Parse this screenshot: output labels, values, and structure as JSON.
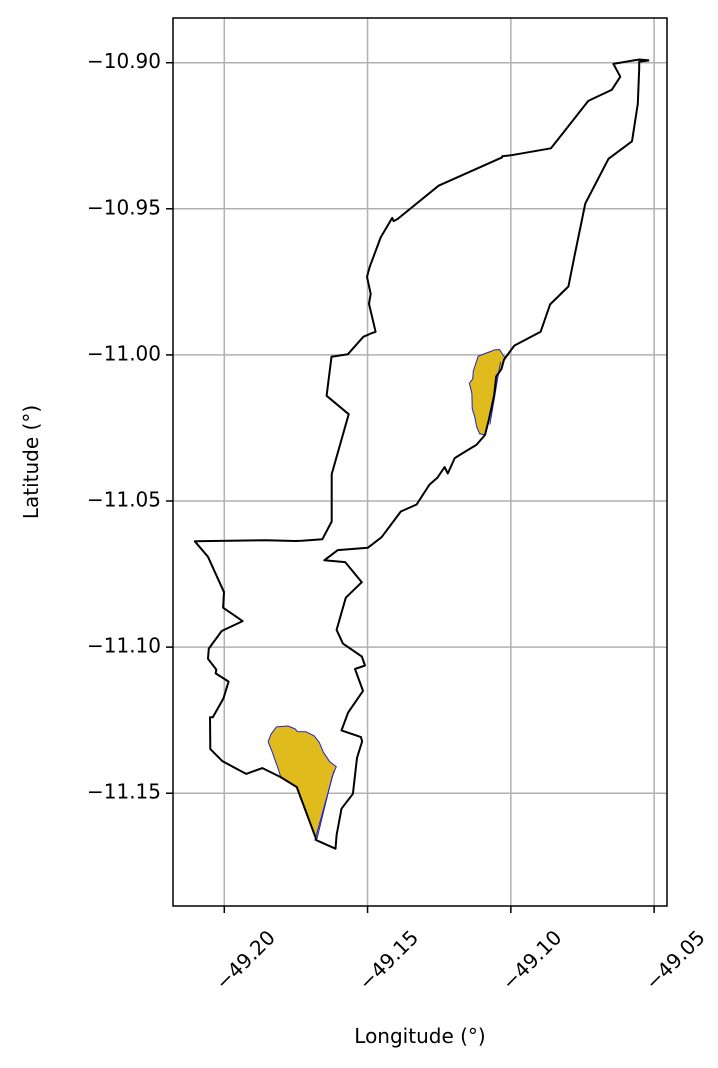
{
  "chart_data": {
    "type": "map",
    "xlabel": "Longitude (°)",
    "ylabel": "Latitude (°)",
    "xlim": [
      -49.2179,
      -49.0455
    ],
    "ylim": [
      -11.1886,
      -10.8847
    ],
    "xticks": [
      -49.2,
      -49.15,
      -49.1,
      -49.05
    ],
    "xtick_labels": [
      "−49.20",
      "−49.15",
      "−49.10",
      "−49.05"
    ],
    "yticks": [
      -10.9,
      -10.95,
      -11.0,
      -11.05,
      -11.1,
      -11.15
    ],
    "ytick_labels": [
      "−10.90",
      "−10.95",
      "−11.00",
      "−11.05",
      "−11.10",
      "−11.15"
    ],
    "grid": true,
    "colors": {
      "boundary_stroke": "#000000",
      "patch_fill": "#e0bb1d",
      "patch_stroke": "#2222cc",
      "grid": "#b0b0b0"
    },
    "boundary": [
      [
        -49.0517,
        -10.8992
      ],
      [
        -49.0552,
        -10.8989
      ],
      [
        -49.0642,
        -10.9004
      ],
      [
        -49.0618,
        -10.9048
      ],
      [
        -49.0648,
        -10.9093
      ],
      [
        -49.0715,
        -10.9124
      ],
      [
        -49.073,
        -10.9131
      ],
      [
        -49.086,
        -10.9293
      ],
      [
        -49.1,
        -10.9317
      ],
      [
        -49.103,
        -10.932
      ],
      [
        -49.1031,
        -10.9324
      ],
      [
        -49.1252,
        -10.9421
      ],
      [
        -49.1395,
        -10.9535
      ],
      [
        -49.1409,
        -10.9542
      ],
      [
        -49.1414,
        -10.9531
      ],
      [
        -49.1454,
        -10.9598
      ],
      [
        -49.1493,
        -10.97
      ],
      [
        -49.1502,
        -10.9733
      ],
      [
        -49.1489,
        -10.9791
      ],
      [
        -49.1495,
        -10.9825
      ],
      [
        -49.1472,
        -10.9921
      ],
      [
        -49.1484,
        -10.9925
      ],
      [
        -49.1515,
        -10.9938
      ],
      [
        -49.1569,
        -10.9998
      ],
      [
        -49.1626,
        -11.0006
      ],
      [
        -49.1643,
        -11.014
      ],
      [
        -49.1566,
        -11.0203
      ],
      [
        -49.1625,
        -11.0408
      ],
      [
        -49.1625,
        -11.057
      ],
      [
        -49.1658,
        -11.0631
      ],
      [
        -49.1729,
        -11.0636
      ],
      [
        -49.1753,
        -11.0637
      ],
      [
        -49.1854,
        -11.0634
      ],
      [
        -49.2103,
        -11.0638
      ],
      [
        -49.2057,
        -11.0691
      ],
      [
        -49.2001,
        -11.0812
      ],
      [
        -49.2004,
        -11.0865
      ],
      [
        -49.1936,
        -11.0911
      ],
      [
        -49.2009,
        -11.0945
      ],
      [
        -49.2054,
        -11.1005
      ],
      [
        -49.2057,
        -11.104
      ],
      [
        -49.2028,
        -11.1077
      ],
      [
        -49.203,
        -11.109
      ],
      [
        -49.1985,
        -11.1118
      ],
      [
        -49.2003,
        -11.1176
      ],
      [
        -49.204,
        -11.124
      ],
      [
        -49.205,
        -11.124
      ],
      [
        -49.2049,
        -11.1349
      ],
      [
        -49.2007,
        -11.139
      ],
      [
        -49.1924,
        -11.1434
      ],
      [
        -49.1867,
        -11.1414
      ],
      [
        -49.1803,
        -11.1445
      ],
      [
        -49.1747,
        -11.1479
      ],
      [
        -49.1678,
        -11.1661
      ],
      [
        -49.1612,
        -11.169
      ],
      [
        -49.1608,
        -11.1643
      ],
      [
        -49.1591,
        -11.1553
      ],
      [
        -49.1551,
        -11.1502
      ],
      [
        -49.1537,
        -11.1379
      ],
      [
        -49.1519,
        -11.1323
      ],
      [
        -49.1523,
        -11.1308
      ],
      [
        -49.1591,
        -11.1285
      ],
      [
        -49.1568,
        -11.1224
      ],
      [
        -49.1516,
        -11.115
      ],
      [
        -49.1544,
        -11.1075
      ],
      [
        -49.1509,
        -11.1063
      ],
      [
        -49.152,
        -11.1032
      ],
      [
        -49.1586,
        -11.0988
      ],
      [
        -49.1608,
        -11.0941
      ],
      [
        -49.1576,
        -11.0831
      ],
      [
        -49.152,
        -11.0778
      ],
      [
        -49.1578,
        -11.0709
      ],
      [
        -49.1651,
        -11.0703
      ],
      [
        -49.1604,
        -11.0668
      ],
      [
        -49.1499,
        -11.066
      ],
      [
        -49.1451,
        -11.0624
      ],
      [
        -49.1384,
        -11.0536
      ],
      [
        -49.1329,
        -11.0512
      ],
      [
        -49.1284,
        -11.0444
      ],
      [
        -49.1256,
        -11.042
      ],
      [
        -49.1231,
        -11.0384
      ],
      [
        -49.122,
        -11.0406
      ],
      [
        -49.1196,
        -11.0353
      ],
      [
        -49.1153,
        -11.0327
      ],
      [
        -49.112,
        -11.0308
      ],
      [
        -49.109,
        -11.0274
      ],
      [
        -49.1076,
        -11.0218
      ],
      [
        -49.1058,
        -11.0137
      ],
      [
        -49.1051,
        -11.0074
      ],
      [
        -49.1033,
        -11.0049
      ],
      [
        -49.1024,
        -11.0016
      ],
      [
        -49.0988,
        -10.9968
      ],
      [
        -49.0896,
        -10.9921
      ],
      [
        -49.0863,
        -10.9827
      ],
      [
        -49.0799,
        -10.9766
      ],
      [
        -49.0778,
        -10.9663
      ],
      [
        -49.074,
        -10.9482
      ],
      [
        -49.0659,
        -10.9329
      ],
      [
        -49.0577,
        -10.9269
      ],
      [
        -49.0557,
        -10.9141
      ],
      [
        -49.0552,
        -10.902
      ],
      [
        -49.0552,
        -10.8997
      ],
      [
        -49.0517,
        -10.8992
      ]
    ],
    "highlight_patches": [
      [
        [
          -49.1114,
          -11.0004
        ],
        [
          -49.1067,
          -10.9987
        ],
        [
          -49.1058,
          -10.9983
        ],
        [
          -49.1039,
          -10.9982
        ],
        [
          -49.1029,
          -10.9998
        ],
        [
          -49.1019,
          -11.0011
        ],
        [
          -49.1024,
          -11.0016
        ],
        [
          -49.1033,
          -11.0049
        ],
        [
          -49.1051,
          -11.0074
        ],
        [
          -49.1058,
          -11.0137
        ],
        [
          -49.1076,
          -11.0218
        ],
        [
          -49.109,
          -11.0274
        ],
        [
          -49.1109,
          -11.027
        ],
        [
          -49.1119,
          -11.0246
        ],
        [
          -49.1126,
          -11.0212
        ],
        [
          -49.1135,
          -11.0184
        ],
        [
          -49.1136,
          -11.0132
        ],
        [
          -49.1145,
          -11.0097
        ],
        [
          -49.1133,
          -11.0082
        ],
        [
          -49.1131,
          -11.0055
        ],
        [
          -49.1114,
          -11.0004
        ]
      ],
      [
        [
          -49.1818,
          -11.1273
        ],
        [
          -49.1778,
          -11.127
        ],
        [
          -49.1753,
          -11.128
        ],
        [
          -49.1745,
          -11.1289
        ],
        [
          -49.1714,
          -11.129
        ],
        [
          -49.1686,
          -11.1304
        ],
        [
          -49.1668,
          -11.1327
        ],
        [
          -49.1654,
          -11.136
        ],
        [
          -49.1632,
          -11.1392
        ],
        [
          -49.1609,
          -11.1409
        ],
        [
          -49.1624,
          -11.1445
        ],
        [
          -49.1678,
          -11.1661
        ],
        [
          -49.1747,
          -11.1479
        ],
        [
          -49.1803,
          -11.1445
        ],
        [
          -49.1807,
          -11.1431
        ],
        [
          -49.1834,
          -11.1356
        ],
        [
          -49.1847,
          -11.1324
        ],
        [
          -49.1837,
          -11.1298
        ],
        [
          -49.1818,
          -11.1273
        ]
      ]
    ],
    "patch_lines": [
      [
        [
          -49.1073,
          -11.0238
        ],
        [
          -49.1036,
          -11.0024
        ]
      ],
      [
        [
          -49.1684,
          -11.1663
        ],
        [
          -49.1617,
          -11.1424
        ]
      ]
    ]
  }
}
